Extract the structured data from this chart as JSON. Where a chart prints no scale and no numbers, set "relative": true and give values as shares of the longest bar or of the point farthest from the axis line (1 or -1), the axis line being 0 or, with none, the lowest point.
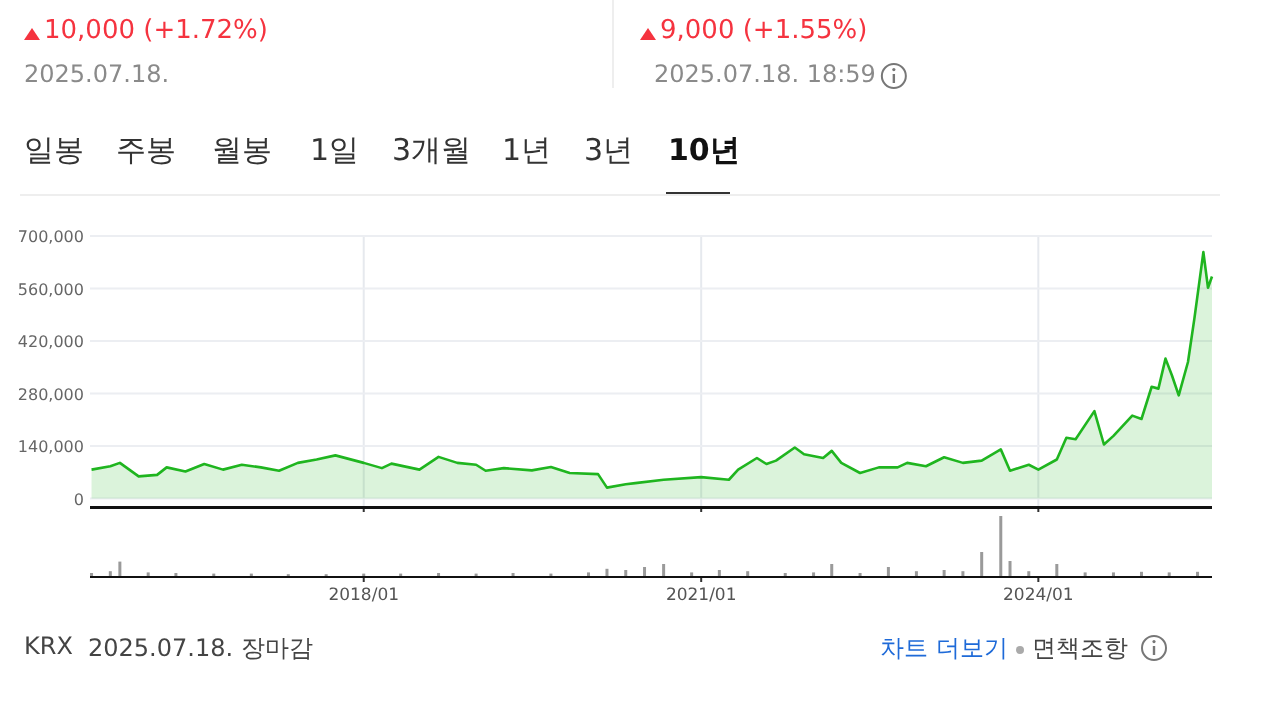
{
  "chart_data": [
    {
      "type": "area",
      "color": "#1fb51f",
      "annotations": [
        "10,000 (+1.72%)",
        "2025.07.18.",
        "9,000 (+1.55%)",
        "2025.07.18. 18:59",
        "일봉",
        "주봉",
        "월봉",
        "1일",
        "3개월",
        "1년",
        "3년",
        "10년",
        "KRX",
        "2025.07.18. 장마감",
        "차트 더보기",
        "면책조항"
      ],
      "x": [
        "2015-08",
        "2015-10",
        "2015-11",
        "2016-01",
        "2016-03",
        "2016-04",
        "2016-06",
        "2016-08",
        "2016-10",
        "2016-12",
        "2017-02",
        "2017-04",
        "2017-06",
        "2017-08",
        "2017-10",
        "2018-01",
        "2018-03",
        "2018-04",
        "2018-07",
        "2018-09",
        "2018-11",
        "2019-01",
        "2019-02",
        "2019-04",
        "2019-07",
        "2019-09",
        "2019-11",
        "2020-02",
        "2020-03",
        "2020-05",
        "2020-06",
        "2020-09",
        "2021-01",
        "2021-04",
        "2021-05",
        "2021-07",
        "2021-08",
        "2021-09",
        "2021-11",
        "2021-12",
        "2022-02",
        "2022-03",
        "2022-04",
        "2022-06",
        "2022-08",
        "2022-10",
        "2022-11",
        "2023-01",
        "2023-03",
        "2023-05",
        "2023-07",
        "2023-09",
        "2023-10",
        "2023-12",
        "2024-01",
        "2024-03",
        "2024-04",
        "2024-05",
        "2024-07",
        "2024-08",
        "2024-09",
        "2024-11",
        "2024-12",
        "2025-01-03",
        "2025-01-25",
        "2025-02-17",
        "2025-03-10",
        "2025-04-01",
        "2025-05-01",
        "2025-05-22",
        "2025-06-20",
        "2025-07-05",
        "2025-07-18"
      ],
      "values": [
        77000,
        86000,
        95000,
        59000,
        63000,
        83000,
        72000,
        92000,
        77000,
        90000,
        83000,
        74000,
        95000,
        104000,
        115000,
        95000,
        81000,
        93000,
        77000,
        111000,
        95000,
        90000,
        74000,
        81000,
        75000,
        84000,
        68000,
        65000,
        29000,
        38000,
        41000,
        50000,
        57000,
        50000,
        77000,
        108000,
        92000,
        101000,
        136000,
        118000,
        108000,
        127000,
        95000,
        68000,
        83000,
        83000,
        95000,
        86000,
        110000,
        95000,
        101000,
        131000,
        74000,
        90000,
        77000,
        104000,
        162000,
        158000,
        233000,
        144000,
        167000,
        221000,
        212000,
        298000,
        293000,
        373000,
        328000,
        275000,
        364000,
        481000,
        657000,
        562000,
        592000
      ],
      "xlim": [
        "2015-07-27",
        "2025-07-18"
      ],
      "ylim": [
        -20000,
        700000
      ],
      "yticks": [
        0,
        {
          "value": 140000,
          "label": "140,000"
        },
        {
          "value": 280000,
          "label": "280,000"
        },
        {
          "value": 420000,
          "label": "420,000"
        },
        {
          "value": 560000,
          "label": "560,000"
        },
        {
          "value": 700000,
          "label": "700,000"
        }
      ],
      "xticks": [
        {
          "value": "2018-01",
          "label": null
        },
        {
          "value": "2021-01",
          "label": null
        },
        {
          "value": "2024-01",
          "label": null
        }
      ],
      "grid": true,
      "tick_labels": "y"
    },
    {
      "type": "bar",
      "relative": true,
      "color": "#9a9a9a",
      "x": [
        "2015-08",
        "2015-10",
        "2015-11",
        "2016-02",
        "2016-05",
        "2016-09",
        "2017-01",
        "2017-05",
        "2017-09",
        "2018-01",
        "2018-05",
        "2018-09",
        "2019-01",
        "2019-05",
        "2019-09",
        "2020-01",
        "2020-03",
        "2020-05",
        "2020-07",
        "2020-09",
        "2020-12",
        "2021-03",
        "2021-06",
        "2021-10",
        "2022-01",
        "2022-03",
        "2022-06",
        "2022-09",
        "2022-12",
        "2023-03",
        "2023-05",
        "2023-07",
        "2023-09",
        "2023-10",
        "2023-12",
        "2024-03",
        "2024-06",
        "2024-09",
        "2024-12",
        "2025-03",
        "2025-06"
      ],
      "values": [
        0.05,
        0.08,
        0.24,
        0.06,
        0.05,
        0.04,
        0.04,
        0.03,
        0.03,
        0.04,
        0.04,
        0.05,
        0.04,
        0.05,
        0.04,
        0.06,
        0.12,
        0.1,
        0.15,
        0.2,
        0.06,
        0.1,
        0.08,
        0.05,
        0.06,
        0.2,
        0.05,
        0.15,
        0.08,
        0.1,
        0.08,
        0.4,
        1.0,
        0.25,
        0.08,
        0.2,
        0.06,
        0.06,
        0.07,
        0.06,
        0.07
      ],
      "xlim": [
        "2015-07-27",
        "2025-07-18"
      ],
      "xticks": [
        {
          "value": "2018-01",
          "label": "2018/01"
        },
        {
          "value": "2021-01",
          "label": "2021/01"
        },
        {
          "value": "2024-01",
          "label": "2024/01"
        }
      ]
    }
  ]
}
